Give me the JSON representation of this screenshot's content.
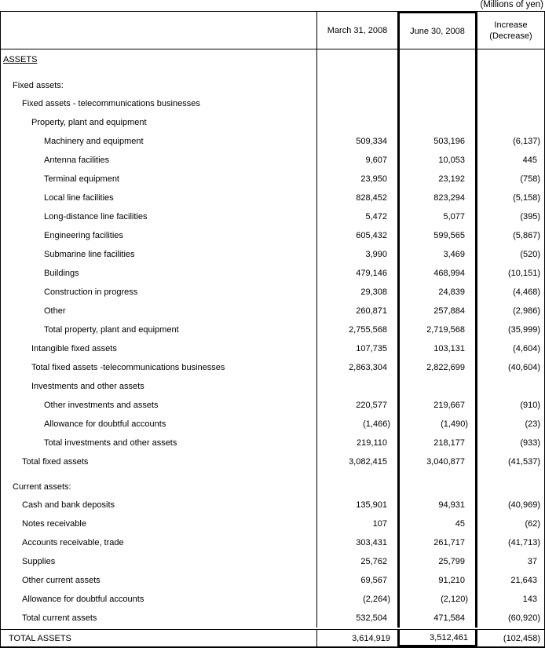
{
  "units_note": "(Millions of yen)",
  "header": {
    "label_col": "",
    "col_mar31": "March 31, 2008",
    "col_jun30": "June 30, 2008",
    "col_increase_line1": "Increase",
    "col_increase_line2": "(Decrease)"
  },
  "table": {
    "rows": [
      {
        "label": "ASSETS",
        "indent": 0,
        "underline": true,
        "assets_title": true,
        "v": [
          "",
          "",
          ""
        ]
      },
      {
        "label": "Fixed assets:",
        "indent": 1,
        "gap": true,
        "v": [
          "",
          "",
          ""
        ]
      },
      {
        "label": "Fixed assets - telecommunications businesses",
        "indent": 2,
        "v": [
          "",
          "",
          ""
        ]
      },
      {
        "label": "Property, plant and equipment",
        "indent": 3,
        "v": [
          "",
          "",
          ""
        ]
      },
      {
        "label": "Machinery and equipment",
        "indent": 4,
        "v": [
          "509,334",
          "503,196",
          "(6,137)"
        ]
      },
      {
        "label": "Antenna facilities",
        "indent": 4,
        "v": [
          "9,607",
          "10,053",
          "445"
        ]
      },
      {
        "label": "Terminal equipment",
        "indent": 4,
        "v": [
          "23,950",
          "23,192",
          "(758)"
        ]
      },
      {
        "label": "Local line facilities",
        "indent": 4,
        "v": [
          "828,452",
          "823,294",
          "(5,158)"
        ]
      },
      {
        "label": "Long-distance line facilities",
        "indent": 4,
        "v": [
          "5,472",
          "5,077",
          "(395)"
        ]
      },
      {
        "label": "Engineering facilities",
        "indent": 4,
        "v": [
          "605,432",
          "599,565",
          "(5,867)"
        ]
      },
      {
        "label": "Submarine line facilities",
        "indent": 4,
        "v": [
          "3,990",
          "3,469",
          "(520)"
        ]
      },
      {
        "label": "Buildings",
        "indent": 4,
        "v": [
          "479,146",
          "468,994",
          "(10,151)"
        ]
      },
      {
        "label": "Construction in progress",
        "indent": 4,
        "v": [
          "29,308",
          "24,839",
          "(4,468)"
        ]
      },
      {
        "label": "Other",
        "indent": 4,
        "v": [
          "260,871",
          "257,884",
          "(2,986)"
        ]
      },
      {
        "label": "Total property, plant and equipment",
        "indent": 4,
        "v": [
          "2,755,568",
          "2,719,568",
          "(35,999)"
        ]
      },
      {
        "label": "Intangible fixed assets",
        "indent": 3,
        "v": [
          "107,735",
          "103,131",
          "(4,604)"
        ]
      },
      {
        "label": "Total fixed assets -telecommunications businesses",
        "indent": 3,
        "v": [
          "2,863,304",
          "2,822,699",
          "(40,604)"
        ]
      },
      {
        "label": "Investments and other assets",
        "indent": 3,
        "v": [
          "",
          "",
          ""
        ]
      },
      {
        "label": "Other investments and assets",
        "indent": 4,
        "v": [
          "220,577",
          "219,667",
          "(910)"
        ]
      },
      {
        "label": "Allowance for doubtful accounts",
        "indent": 4,
        "v": [
          "(1,466)",
          "(1,490)",
          "(23)"
        ]
      },
      {
        "label": "Total investments and other assets",
        "indent": 4,
        "v": [
          "219,110",
          "218,177",
          "(933)"
        ]
      },
      {
        "label": "Total fixed assets",
        "indent": 2,
        "v": [
          "3,082,415",
          "3,040,877",
          "(41,537)"
        ]
      },
      {
        "label": "Current assets:",
        "indent": 1,
        "gap": true,
        "v": [
          "",
          "",
          ""
        ]
      },
      {
        "label": "Cash and bank deposits",
        "indent": 2,
        "v": [
          "135,901",
          "94,931",
          "(40,969)"
        ]
      },
      {
        "label": "Notes receivable",
        "indent": 2,
        "v": [
          "107",
          "45",
          "(62)"
        ]
      },
      {
        "label": "Accounts receivable, trade",
        "indent": 2,
        "v": [
          "303,431",
          "261,717",
          "(41,713)"
        ]
      },
      {
        "label": "Supplies",
        "indent": 2,
        "v": [
          "25,762",
          "25,799",
          "37"
        ]
      },
      {
        "label": "Other current assets",
        "indent": 2,
        "v": [
          "69,567",
          "91,210",
          "21,643"
        ]
      },
      {
        "label": "Allowance for doubtful accounts",
        "indent": 2,
        "v": [
          "(2,264)",
          "(2,120)",
          "143"
        ]
      },
      {
        "label": "Total current assets",
        "indent": 2,
        "v": [
          "532,504",
          "471,584",
          "(60,920)"
        ]
      }
    ],
    "footer": {
      "label": "TOTAL ASSETS",
      "v": [
        "3,614,919",
        "3,512,461",
        "(102,458)"
      ]
    }
  }
}
